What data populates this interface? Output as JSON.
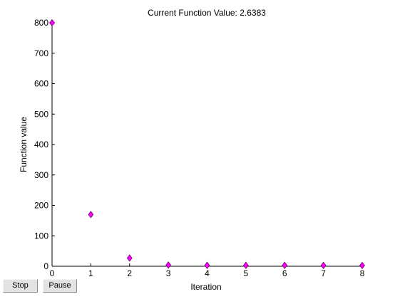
{
  "chart_data": {
    "type": "scatter",
    "title": "Current Function Value: 2.6383",
    "xlabel": "Iteration",
    "ylabel": "Function value",
    "xlim": [
      0,
      8
    ],
    "ylim": [
      0,
      800
    ],
    "xticks": [
      "0",
      "1",
      "2",
      "3",
      "4",
      "5",
      "6",
      "7",
      "8"
    ],
    "yticks": [
      "0",
      "100",
      "200",
      "300",
      "400",
      "500",
      "600",
      "700",
      "800"
    ],
    "grid": false,
    "marker": "diamond",
    "marker_color": "#ff00ff",
    "points": [
      {
        "x": 0,
        "y": 800
      },
      {
        "x": 1,
        "y": 170
      },
      {
        "x": 2,
        "y": 27
      },
      {
        "x": 3,
        "y": 4
      },
      {
        "x": 4,
        "y": 3
      },
      {
        "x": 5,
        "y": 3
      },
      {
        "x": 6,
        "y": 3
      },
      {
        "x": 7,
        "y": 2.7
      },
      {
        "x": 8,
        "y": 2.6383
      }
    ]
  },
  "controls": {
    "stop_label": "Stop",
    "pause_label": "Pause"
  }
}
